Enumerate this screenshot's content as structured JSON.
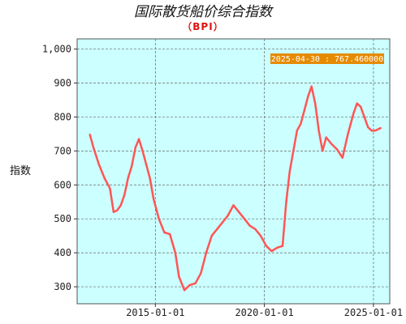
{
  "chart_data": {
    "type": "line",
    "title": "国际散货船价综合指数",
    "subtitle": "（BPI）",
    "ylabel": "指数",
    "xlabel": "",
    "ylim": [
      250,
      1030
    ],
    "xlim": [
      "2011-06-01",
      "2025-10-01"
    ],
    "yticks": [
      300,
      400,
      500,
      600,
      700,
      800,
      900,
      1000
    ],
    "ytick_labels": [
      "300",
      "400",
      "500",
      "600",
      "700",
      "800",
      "900",
      "1,000"
    ],
    "xticks": [
      "2015-01-01",
      "2020-01-01",
      "2025-01-01"
    ],
    "xtick_labels": [
      "2015-01-01",
      "2020-01-01",
      "2025-01-01"
    ],
    "grid": true,
    "background_color": "#ccffff",
    "line_color": "#ff5555",
    "annotation": {
      "text": "2025-04-30 : 767.460000",
      "background_color": "#e68a00"
    },
    "series": [
      {
        "x": [
          "2012-01-01",
          "2012-03-01",
          "2012-06-01",
          "2012-09-01",
          "2012-12-01",
          "2013-02-01",
          "2013-04-01",
          "2013-06-01",
          "2013-08-01",
          "2013-10-01",
          "2013-12-01",
          "2014-02-01",
          "2014-04-01",
          "2014-06-01",
          "2014-08-01",
          "2014-10-01",
          "2014-12-01",
          "2015-03-01",
          "2015-06-01",
          "2015-09-01",
          "2015-12-01",
          "2016-02-01",
          "2016-05-01",
          "2016-08-01",
          "2016-11-01",
          "2017-02-01",
          "2017-05-01",
          "2017-08-01",
          "2017-11-01",
          "2018-02-01",
          "2018-05-01",
          "2018-08-01",
          "2018-11-01",
          "2019-02-01",
          "2019-05-01",
          "2019-08-01",
          "2019-11-01",
          "2020-02-01",
          "2020-05-01",
          "2020-08-01",
          "2020-11-01",
          "2021-01-01",
          "2021-03-01",
          "2021-05-01",
          "2021-07-01",
          "2021-09-01",
          "2021-11-01",
          "2022-01-01",
          "2022-03-01",
          "2022-05-01",
          "2022-07-01",
          "2022-09-01",
          "2022-11-01",
          "2023-02-01",
          "2023-05-01",
          "2023-08-01",
          "2023-11-01",
          "2024-02-01",
          "2024-04-01",
          "2024-06-01",
          "2024-08-01",
          "2024-10-01",
          "2024-12-01",
          "2025-02-01",
          "2025-04-30"
        ],
        "values": [
          748,
          710,
          660,
          620,
          590,
          520,
          525,
          540,
          570,
          620,
          655,
          710,
          735,
          700,
          660,
          620,
          560,
          500,
          460,
          455,
          400,
          330,
          290,
          305,
          310,
          340,
          400,
          450,
          470,
          490,
          510,
          540,
          520,
          500,
          480,
          470,
          450,
          420,
          405,
          415,
          420,
          550,
          640,
          700,
          760,
          780,
          820,
          860,
          890,
          840,
          760,
          700,
          740,
          720,
          705,
          680,
          750,
          810,
          840,
          830,
          800,
          770,
          760,
          760,
          767.46
        ]
      }
    ]
  }
}
